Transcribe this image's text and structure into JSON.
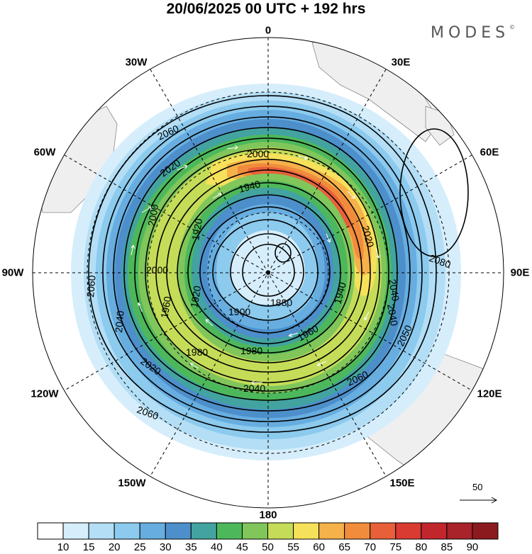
{
  "header": {
    "title": "20/06/2025  00 UTC  + 192 hrs",
    "brand": "MODES",
    "brand_mark": "©"
  },
  "map": {
    "projection": "south-polar-stereographic",
    "longitude_labels": {
      "top": "0",
      "top_left": "30W",
      "top_right": "30E",
      "left_upper": "60W",
      "right_upper": "60E",
      "left": "90W",
      "right": "90E",
      "left_lower": "120W",
      "right_lower": "120E",
      "bottom_left": "150W",
      "bottom_right": "150E",
      "bottom": "180"
    },
    "contour_labels": [
      "2060",
      "2000",
      "2020",
      "1940",
      "2000",
      "2020",
      "2000",
      "1920",
      "2040",
      "2060",
      "2040",
      "1960",
      "1920",
      "1900",
      "1880",
      "1940",
      "2080",
      "2040",
      "2050",
      "1960",
      "1980",
      "1980",
      "2020",
      "2040",
      "2060",
      "2060"
    ],
    "colors": {
      "land": "#efefef",
      "grid": "#000000",
      "contour": "#000000",
      "wind_vector": "#ffffff"
    }
  },
  "reference_vector": {
    "value": "50"
  },
  "colorbar": {
    "labels": [
      "10",
      "15",
      "20",
      "25",
      "30",
      "35",
      "40",
      "45",
      "50",
      "55",
      "60",
      "65",
      "70",
      "75",
      "80",
      "85",
      "90"
    ],
    "colors": [
      "#ffffff",
      "#d6eefb",
      "#b3def5",
      "#8ccaee",
      "#67ade0",
      "#4d8fcb",
      "#43a3a0",
      "#4db85b",
      "#80c65a",
      "#c5dc58",
      "#f6e15b",
      "#f5b14a",
      "#f08c3b",
      "#e8603a",
      "#d93a32",
      "#c2262d",
      "#a8232a",
      "#8b1a1e"
    ]
  }
}
